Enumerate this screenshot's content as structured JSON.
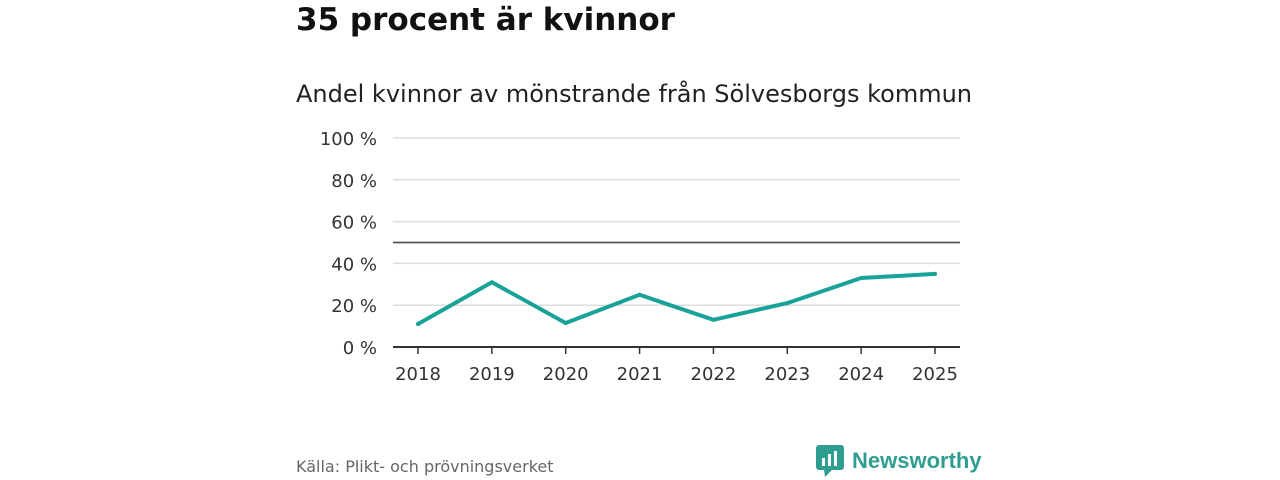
{
  "page": {
    "title": "35 procent är kvinnor",
    "subtitle": "Andel kvinnor av mönstrande från Sölvesborgs kommun",
    "source": "Källa: Plikt- och prövningsverket",
    "brand": "Newsworthy"
  },
  "colors": {
    "line": "#19a398",
    "grid": "#dddddd",
    "reference": "#555555",
    "axis": "#333333",
    "brand": "#2f9e91"
  },
  "icons": {
    "brand_logo": "newsworthy-logo-icon"
  },
  "chart_data": {
    "type": "line",
    "x": [
      "2018",
      "2019",
      "2020",
      "2021",
      "2022",
      "2023",
      "2024",
      "2025"
    ],
    "series": [
      {
        "values": [
          11,
          31,
          11.5,
          25,
          13,
          21,
          33,
          35
        ]
      }
    ],
    "reference_line": 50,
    "ylim": [
      0,
      100
    ],
    "yticks": [
      0,
      20,
      40,
      60,
      80,
      100
    ],
    "ytick_labels": [
      "0 %",
      "20 %",
      "40 %",
      "60 %",
      "80 %",
      "100 %"
    ],
    "grid": true,
    "legend": "none"
  }
}
